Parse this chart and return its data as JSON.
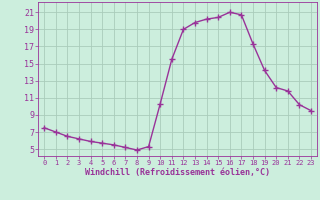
{
  "x": [
    0,
    1,
    2,
    3,
    4,
    5,
    6,
    7,
    8,
    9,
    10,
    11,
    12,
    13,
    14,
    15,
    16,
    17,
    18,
    19,
    20,
    21,
    22,
    23
  ],
  "y": [
    7.5,
    7.0,
    6.5,
    6.2,
    5.9,
    5.7,
    5.5,
    5.2,
    4.9,
    5.3,
    10.3,
    15.5,
    19.0,
    19.8,
    20.2,
    20.4,
    21.0,
    20.7,
    17.3,
    14.2,
    12.2,
    11.8,
    10.2,
    9.5
  ],
  "line_color": "#993399",
  "marker": "+",
  "markersize": 4,
  "markeredgewidth": 1.0,
  "linewidth": 1.0,
  "bg_color": "#cceedd",
  "grid_color": "#aaccbb",
  "xlabel": "Windchill (Refroidissement éolien,°C)",
  "tick_color": "#993399",
  "yticks": [
    5,
    7,
    9,
    11,
    13,
    15,
    17,
    19,
    21
  ],
  "xticks": [
    0,
    1,
    2,
    3,
    4,
    5,
    6,
    7,
    8,
    9,
    10,
    11,
    12,
    13,
    14,
    15,
    16,
    17,
    18,
    19,
    20,
    21,
    22,
    23
  ],
  "ylim": [
    4.2,
    22.2
  ],
  "xlim": [
    -0.5,
    23.5
  ],
  "xlabel_fontsize": 6.0,
  "xtick_fontsize": 5.0,
  "ytick_fontsize": 6.0
}
